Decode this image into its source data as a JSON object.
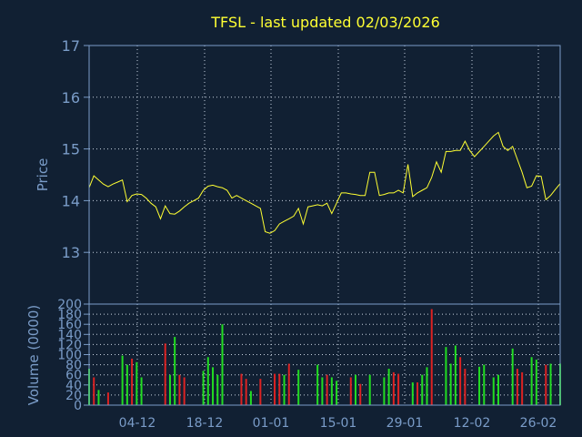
{
  "title": "TFSL - last updated 02/03/2026",
  "colors": {
    "background": "#112033",
    "axis": "#7a9cc8",
    "grid": "#c8d2e0",
    "price_line": "#ffff33",
    "volume_up": "#22dd22",
    "volume_down": "#dd2222",
    "title": "#ffff33"
  },
  "chart_data": [
    {
      "type": "line",
      "title": "TFSL - last updated 02/03/2026",
      "ylabel": "Price",
      "ylim": [
        12.0,
        17.0
      ],
      "yticks": [
        "13",
        "14",
        "15",
        "16",
        "17"
      ],
      "xticks": [
        "04-12",
        "18-12",
        "01-01",
        "15-01",
        "29-01",
        "12-02",
        "26-02"
      ],
      "grid": true,
      "series": [
        {
          "values": [
            14.25,
            14.48,
            14.4,
            14.32,
            14.27,
            14.32,
            14.36,
            14.4,
            13.98,
            14.1,
            14.13,
            14.12,
            14.05,
            13.95,
            13.88,
            13.65,
            13.9,
            13.75,
            13.74,
            13.8,
            13.88,
            13.95,
            14.0,
            14.05,
            14.2,
            14.28,
            14.3,
            14.27,
            14.25,
            14.2,
            14.05,
            14.1,
            14.05,
            14.0,
            13.95,
            13.9,
            13.85,
            13.4,
            13.37,
            13.42,
            13.55,
            13.6,
            13.65,
            13.7,
            13.85,
            13.55,
            13.88,
            13.9,
            13.92,
            13.9,
            13.95,
            13.75,
            13.95,
            14.15,
            14.15,
            14.13,
            14.12,
            14.1,
            14.1,
            14.55,
            14.55,
            14.1,
            14.12,
            14.15,
            14.15,
            14.2,
            14.15,
            14.7,
            14.08,
            14.15,
            14.2,
            14.25,
            14.45,
            14.75,
            14.55,
            14.95,
            14.95,
            14.97,
            14.97,
            15.15,
            14.97,
            14.85,
            14.95,
            15.05,
            15.15,
            15.25,
            15.32,
            15.05,
            14.97,
            15.05,
            14.8,
            14.55,
            14.25,
            14.28,
            14.48,
            14.47,
            14.02,
            14.1,
            14.22,
            14.33
          ]
        }
      ]
    },
    {
      "type": "bar",
      "ylabel": "Volume (0000)",
      "ylim": [
        0,
        200
      ],
      "yticks": [
        "0",
        "20",
        "40",
        "60",
        "80",
        "100",
        "120",
        "140",
        "160",
        "180",
        "200"
      ],
      "grid": true,
      "series": [
        {
          "values": [
            72,
            55,
            30,
            0,
            25,
            0,
            0,
            98,
            80,
            92,
            85,
            55,
            0,
            0,
            0,
            0,
            122,
            60,
            135,
            60,
            55,
            0,
            0,
            0,
            68,
            95,
            75,
            60,
            160,
            0,
            0,
            0,
            62,
            52,
            28,
            0,
            52,
            0,
            0,
            62,
            62,
            60,
            82,
            0,
            70,
            0,
            0,
            0,
            80,
            55,
            60,
            55,
            48,
            0,
            0,
            55,
            60,
            42,
            0,
            60,
            0,
            0,
            55,
            72,
            65,
            62,
            0,
            0,
            45,
            45,
            60,
            75,
            190,
            0,
            0,
            115,
            82,
            118,
            95,
            72,
            0,
            0,
            76,
            80,
            0,
            55,
            60,
            0,
            0,
            112,
            72,
            65,
            0,
            95,
            90,
            0,
            80,
            82,
            0,
            82
          ],
          "direction": [
            "up",
            "down",
            "up",
            "up",
            "down",
            "up",
            "up",
            "up",
            "up",
            "down",
            "up",
            "up",
            "down",
            "down",
            "down",
            "down",
            "down",
            "up",
            "up",
            "down",
            "down",
            "up",
            "up",
            "up",
            "up",
            "up",
            "up",
            "up",
            "up",
            "down",
            "down",
            "down",
            "down",
            "down",
            "up",
            "up",
            "down",
            "down",
            "down",
            "down",
            "down",
            "up",
            "down",
            "up",
            "up",
            "down",
            "up",
            "up",
            "up",
            "up",
            "down",
            "up",
            "up",
            "up",
            "down",
            "down",
            "up",
            "down",
            "down",
            "up",
            "up",
            "down",
            "up",
            "up",
            "down",
            "down",
            "up",
            "down",
            "up",
            "down",
            "up",
            "up",
            "down",
            "down",
            "up",
            "up",
            "up",
            "up",
            "down",
            "down",
            "up",
            "down",
            "up",
            "up",
            "down",
            "up",
            "up",
            "down",
            "down",
            "up",
            "down",
            "down",
            "down",
            "up",
            "up",
            "down",
            "down",
            "up",
            "up",
            "up"
          ]
        }
      ]
    }
  ]
}
